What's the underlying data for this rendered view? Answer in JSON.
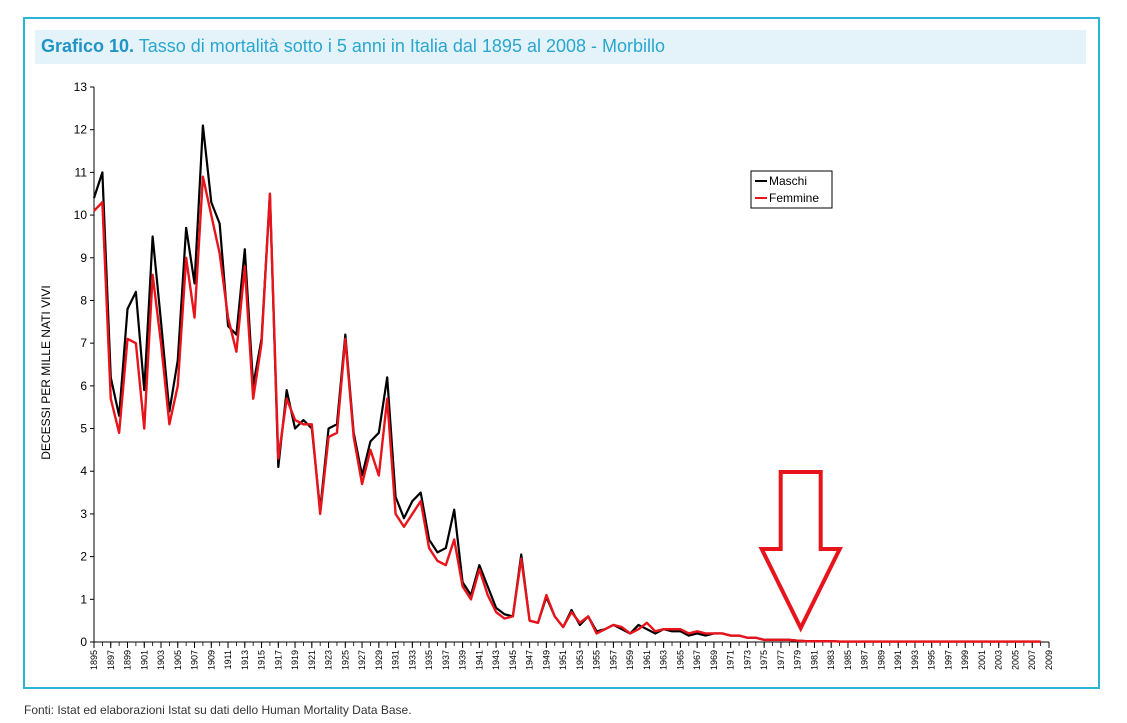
{
  "figure": {
    "title_bold": "Grafico 10.",
    "title_text": "Tasso di mortalità sotto i 5 anni in Italia dal 1895 al 2008 - Morbillo",
    "source": "Fonti: Istat ed elaborazioni Istat su dati dello Human Mortality Data Base."
  },
  "colors": {
    "frame": "#29b6d4",
    "title_bg": "#e3f3f9",
    "maschi": "#000000",
    "femmine": "#e8141b",
    "arrow": "#e8141b"
  },
  "annotation": {
    "type": "arrow-down",
    "points_to_year": 1979
  },
  "chart_data": {
    "type": "line",
    "ylabel": "DECESSI PER MILLE NATI VIVI",
    "xlabel": "",
    "ylim": [
      0,
      13
    ],
    "yticks": [
      0,
      1,
      2,
      3,
      4,
      5,
      6,
      7,
      8,
      9,
      10,
      11,
      12,
      13
    ],
    "xlim": [
      1895,
      2009
    ],
    "xtick_labels": [
      "1895",
      "1897",
      "1899",
      "1901",
      "1903",
      "1905",
      "1907",
      "1909",
      "1911",
      "1913",
      "1915",
      "1917",
      "1919",
      "1921",
      "1923",
      "1925",
      "1927",
      "1929",
      "1931",
      "1933",
      "1935",
      "1937",
      "1939",
      "1941",
      "1943",
      "1945",
      "1947",
      "1949",
      "1951",
      "1953",
      "1955",
      "1957",
      "1959",
      "1961",
      "1963",
      "1965",
      "1967",
      "1969",
      "1971",
      "1973",
      "1975",
      "1977",
      "1979",
      "1981",
      "1983",
      "1985",
      "1987",
      "1989",
      "1991",
      "1993",
      "1995",
      "1997",
      "1999",
      "2001",
      "2003",
      "2005",
      "2007",
      "2009"
    ],
    "legend_position": "top-right",
    "grid": false,
    "x": [
      1895,
      1896,
      1897,
      1898,
      1899,
      1900,
      1901,
      1902,
      1903,
      1904,
      1905,
      1906,
      1907,
      1908,
      1909,
      1910,
      1911,
      1912,
      1913,
      1914,
      1915,
      1916,
      1917,
      1918,
      1919,
      1920,
      1921,
      1922,
      1923,
      1924,
      1925,
      1926,
      1927,
      1928,
      1929,
      1930,
      1931,
      1932,
      1933,
      1934,
      1935,
      1936,
      1937,
      1938,
      1939,
      1940,
      1941,
      1942,
      1943,
      1944,
      1945,
      1946,
      1947,
      1948,
      1949,
      1950,
      1951,
      1952,
      1953,
      1954,
      1955,
      1956,
      1957,
      1958,
      1959,
      1960,
      1961,
      1962,
      1963,
      1964,
      1965,
      1966,
      1967,
      1968,
      1969,
      1970,
      1971,
      1972,
      1973,
      1974,
      1975,
      1976,
      1977,
      1978,
      1979,
      1980,
      1981,
      1982,
      1983,
      1984,
      1985,
      1986,
      1987,
      1988,
      1989,
      1990,
      1991,
      1992,
      1993,
      1994,
      1995,
      1996,
      1997,
      1998,
      1999,
      2000,
      2001,
      2002,
      2003,
      2004,
      2005,
      2006,
      2007,
      2008
    ],
    "series": [
      {
        "name": "Maschi",
        "values": [
          10.4,
          11.0,
          6.2,
          5.3,
          7.8,
          8.2,
          5.9,
          9.5,
          7.5,
          5.4,
          6.6,
          9.7,
          8.4,
          12.1,
          10.3,
          9.8,
          7.4,
          7.2,
          9.2,
          6.0,
          7.1,
          10.5,
          4.1,
          5.9,
          5.0,
          5.2,
          5.0,
          3.1,
          5.0,
          5.1,
          7.2,
          4.9,
          3.9,
          4.7,
          4.9,
          6.2,
          3.4,
          2.9,
          3.3,
          3.5,
          2.4,
          2.1,
          2.2,
          3.1,
          1.4,
          1.1,
          1.8,
          1.3,
          0.8,
          0.65,
          0.6,
          2.05,
          0.5,
          0.45,
          1.05,
          0.6,
          0.35,
          0.75,
          0.4,
          0.6,
          0.25,
          0.3,
          0.4,
          0.3,
          0.2,
          0.4,
          0.3,
          0.2,
          0.3,
          0.25,
          0.25,
          0.15,
          0.2,
          0.15,
          0.2,
          0.2,
          0.15,
          0.15,
          0.1,
          0.1,
          0.05,
          0.05,
          0.05,
          0.05,
          0.03,
          0.02,
          0.02,
          0.02,
          0.02,
          0.01,
          0.01,
          0.01,
          0.01,
          0.01,
          0.01,
          0.01,
          0.01,
          0.01,
          0.01,
          0.01,
          0.01,
          0.01,
          0.01,
          0.01,
          0.01,
          0.01,
          0.01,
          0.01,
          0.01,
          0.01,
          0.01,
          0.01,
          0.01,
          0.01
        ]
      },
      {
        "name": "Femmine",
        "values": [
          10.1,
          10.3,
          5.7,
          4.9,
          7.1,
          7.0,
          5.0,
          8.6,
          7.0,
          5.1,
          6.0,
          9.0,
          7.6,
          10.9,
          10.0,
          9.1,
          7.6,
          6.8,
          8.8,
          5.7,
          7.0,
          10.5,
          4.3,
          5.7,
          5.2,
          5.1,
          5.1,
          3.0,
          4.8,
          4.9,
          7.1,
          4.8,
          3.7,
          4.5,
          3.9,
          5.7,
          3.0,
          2.7,
          3.0,
          3.3,
          2.2,
          1.9,
          1.8,
          2.4,
          1.3,
          1.0,
          1.7,
          1.1,
          0.7,
          0.55,
          0.6,
          1.95,
          0.5,
          0.45,
          1.1,
          0.6,
          0.35,
          0.7,
          0.45,
          0.6,
          0.2,
          0.3,
          0.4,
          0.35,
          0.2,
          0.3,
          0.45,
          0.25,
          0.3,
          0.3,
          0.3,
          0.2,
          0.25,
          0.2,
          0.2,
          0.2,
          0.15,
          0.15,
          0.1,
          0.1,
          0.05,
          0.05,
          0.05,
          0.05,
          0.03,
          0.02,
          0.02,
          0.02,
          0.02,
          0.01,
          0.01,
          0.01,
          0.01,
          0.01,
          0.01,
          0.01,
          0.01,
          0.01,
          0.01,
          0.01,
          0.01,
          0.01,
          0.01,
          0.01,
          0.01,
          0.01,
          0.01,
          0.01,
          0.01,
          0.01,
          0.01,
          0.01,
          0.01,
          0.01
        ]
      }
    ]
  }
}
